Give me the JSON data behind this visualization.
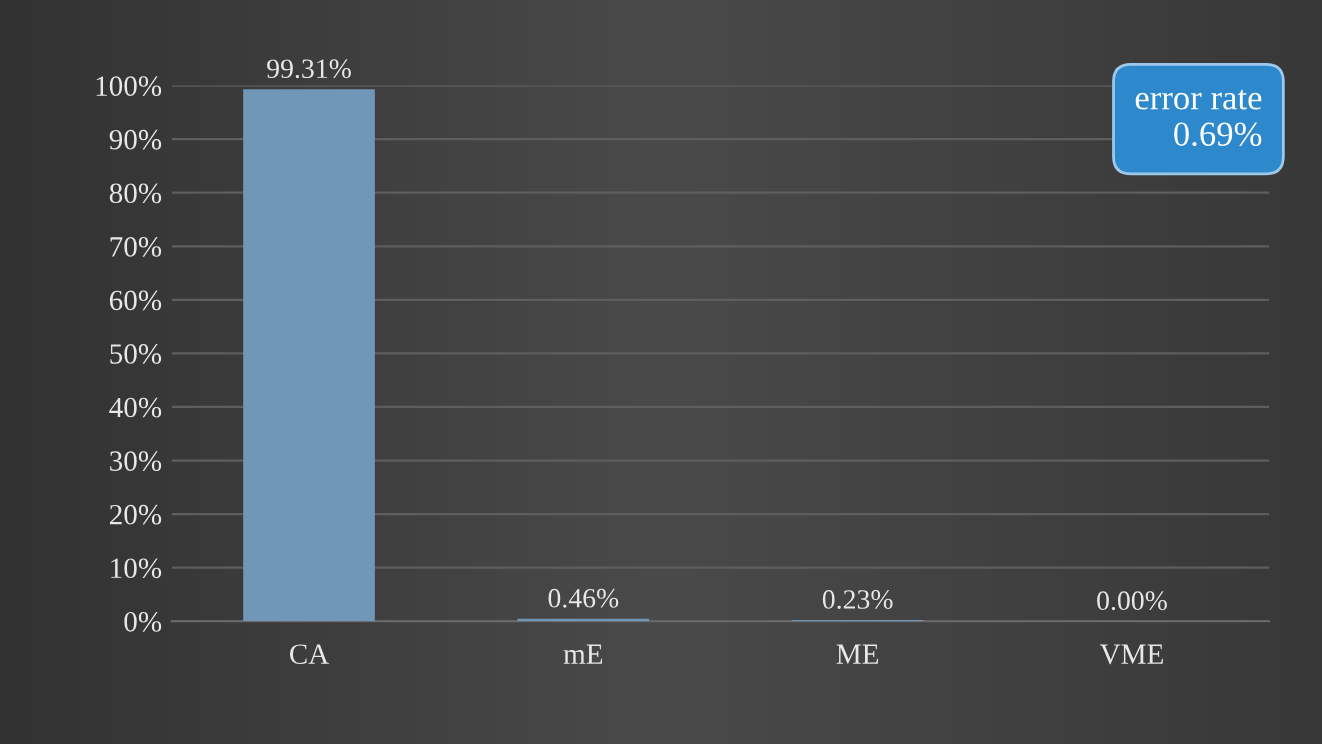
{
  "chart_data": {
    "type": "bar",
    "categories": [
      "CA",
      "mE",
      "ME",
      "VME"
    ],
    "values": [
      99.31,
      0.46,
      0.23,
      0.0
    ],
    "value_labels": [
      "99.31%",
      "0.46%",
      "0.23%",
      "0.00%"
    ],
    "color": "#7097b8",
    "ylim": [
      0,
      100
    ],
    "yticks": [
      {
        "value": 0,
        "label": "0%"
      },
      {
        "value": 10,
        "label": "10%"
      },
      {
        "value": 20,
        "label": "20%"
      },
      {
        "value": 30,
        "label": "30%"
      },
      {
        "value": 40,
        "label": "40%"
      },
      {
        "value": 50,
        "label": "50%"
      },
      {
        "value": 60,
        "label": "60%"
      },
      {
        "value": 70,
        "label": "70%"
      },
      {
        "value": 80,
        "label": "80%"
      },
      {
        "value": 90,
        "label": "90%"
      },
      {
        "value": 100,
        "label": "100%"
      }
    ],
    "grid": "y",
    "annotations": [
      "error rate\n0.69%"
    ]
  }
}
